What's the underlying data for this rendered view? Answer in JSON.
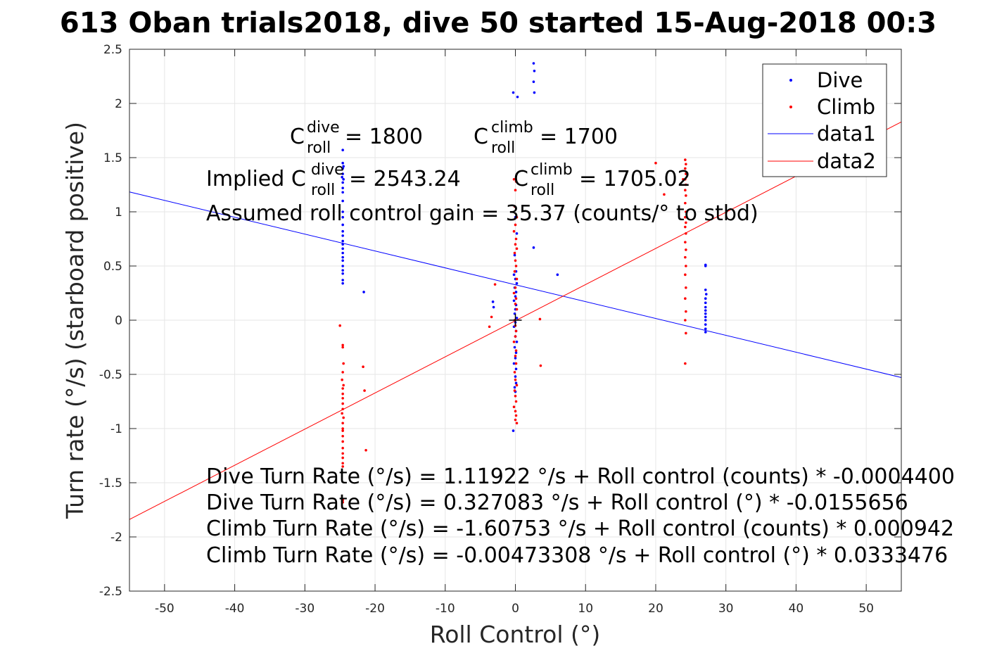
{
  "chart_data": {
    "type": "scatter",
    "title": "613 Oban trials2018, dive 50 started 15-Aug-2018 00:3",
    "xlabel": "Roll Control (°)",
    "ylabel": "Turn rate (°/s) (starboard positive)",
    "xlim": [
      -55,
      55
    ],
    "ylim": [
      -2.5,
      2.5
    ],
    "xticks": [
      -50,
      -40,
      -30,
      -20,
      -10,
      0,
      10,
      20,
      30,
      40,
      50
    ],
    "yticks": [
      -2.5,
      -2,
      -1.5,
      -1,
      -0.5,
      0,
      0.5,
      1,
      1.5,
      2,
      2.5
    ],
    "grid": true,
    "legend_position": "top-right",
    "legend": [
      "Dive",
      "Climb",
      "data1",
      "data2"
    ],
    "colors": {
      "dive": "#0000ff",
      "climb": "#ff0000",
      "axes": "#262626",
      "grid": "#e6e6e6"
    },
    "series": [
      {
        "name": "Dive",
        "kind": "points",
        "color": "#0000ff",
        "points": [
          [
            -24.6,
            1.57
          ],
          [
            -24.6,
            1.45
          ],
          [
            -24.5,
            1.42
          ],
          [
            -24.6,
            1.4
          ],
          [
            -24.6,
            1.35
          ],
          [
            -24.7,
            1.32
          ],
          [
            -24.5,
            1.3
          ],
          [
            -24.6,
            1.27
          ],
          [
            -24.6,
            1.22
          ],
          [
            -24.6,
            1.18
          ],
          [
            -24.6,
            1.1
          ],
          [
            -24.6,
            1.0
          ],
          [
            -24.6,
            0.95
          ],
          [
            -24.6,
            0.88
          ],
          [
            -24.6,
            0.82
          ],
          [
            -24.6,
            0.78
          ],
          [
            -24.6,
            0.73
          ],
          [
            -24.6,
            0.7
          ],
          [
            -24.6,
            0.66
          ],
          [
            -24.6,
            0.62
          ],
          [
            -24.6,
            0.58
          ],
          [
            -24.6,
            0.55
          ],
          [
            -24.6,
            0.5
          ],
          [
            -24.6,
            0.46
          ],
          [
            -24.6,
            0.43
          ],
          [
            -24.6,
            0.37
          ],
          [
            -24.6,
            0.34
          ],
          [
            -21.6,
            0.26
          ],
          [
            -3.2,
            0.17
          ],
          [
            -3.1,
            0.12
          ],
          [
            -0.3,
            2.1
          ],
          [
            0.3,
            2.06
          ],
          [
            0,
            0.95
          ],
          [
            0.2,
            0.8
          ],
          [
            -0.1,
            0.6
          ],
          [
            0.1,
            0.45
          ],
          [
            -0.2,
            0.42
          ],
          [
            0.0,
            0.38
          ],
          [
            0.2,
            0.34
          ],
          [
            -0.1,
            0.3
          ],
          [
            0.1,
            0.26
          ],
          [
            0.0,
            0.22
          ],
          [
            -0.2,
            0.18
          ],
          [
            0.1,
            0.14
          ],
          [
            0.0,
            0.1
          ],
          [
            -0.1,
            0.06
          ],
          [
            0.2,
            0.02
          ],
          [
            0.0,
            -0.02
          ],
          [
            -0.2,
            -0.06
          ],
          [
            0.1,
            -0.1
          ],
          [
            0.0,
            -0.15
          ],
          [
            0.2,
            -0.2
          ],
          [
            -0.1,
            -0.25
          ],
          [
            0.1,
            -0.3
          ],
          [
            0.0,
            -0.35
          ],
          [
            -0.2,
            -0.4
          ],
          [
            0.1,
            -0.45
          ],
          [
            0.0,
            -0.52
          ],
          [
            0.1,
            -0.58
          ],
          [
            -0.1,
            -0.62
          ],
          [
            0.0,
            -0.66
          ],
          [
            -0.3,
            -1.02
          ],
          [
            2.6,
            2.37
          ],
          [
            2.7,
            2.3
          ],
          [
            2.6,
            2.2
          ],
          [
            2.7,
            2.1
          ],
          [
            2.6,
            0.67
          ],
          [
            6.0,
            0.42
          ],
          [
            27.1,
            0.51
          ],
          [
            27.1,
            0.5
          ],
          [
            27.1,
            0.28
          ],
          [
            27.2,
            0.24
          ],
          [
            27.1,
            0.2
          ],
          [
            27.1,
            0.16
          ],
          [
            27.1,
            0.12
          ],
          [
            27.1,
            0.09
          ],
          [
            27.1,
            0.06
          ],
          [
            27.1,
            0.03
          ],
          [
            27.1,
            0.0
          ],
          [
            27.1,
            -0.04
          ],
          [
            27.1,
            -0.08
          ],
          [
            27.1,
            -0.11
          ]
        ]
      },
      {
        "name": "Climb",
        "kind": "points",
        "color": "#ff0000",
        "points": [
          [
            -25.0,
            -0.05
          ],
          [
            -24.6,
            -0.23
          ],
          [
            -24.6,
            -0.25
          ],
          [
            -24.5,
            -0.4
          ],
          [
            -24.6,
            -0.48
          ],
          [
            -24.7,
            -0.55
          ],
          [
            -24.5,
            -0.6
          ],
          [
            -24.6,
            -0.63
          ],
          [
            -24.6,
            -0.68
          ],
          [
            -24.6,
            -0.72
          ],
          [
            -24.6,
            -0.77
          ],
          [
            -24.6,
            -0.82
          ],
          [
            -24.7,
            -0.86
          ],
          [
            -24.5,
            -0.9
          ],
          [
            -24.6,
            -0.95
          ],
          [
            -24.6,
            -1.0
          ],
          [
            -24.6,
            -1.02
          ],
          [
            -24.6,
            -1.07
          ],
          [
            -24.6,
            -1.12
          ],
          [
            -24.6,
            -1.18
          ],
          [
            -24.6,
            -1.23
          ],
          [
            -24.6,
            -1.27
          ],
          [
            -24.6,
            -1.32
          ],
          [
            -24.6,
            -1.35
          ],
          [
            -24.6,
            -1.66
          ],
          [
            -24.6,
            -1.68
          ],
          [
            -21.7,
            -0.43
          ],
          [
            -21.5,
            -0.65
          ],
          [
            -21.3,
            -1.2
          ],
          [
            -3.7,
            -0.06
          ],
          [
            -3.4,
            0.03
          ],
          [
            -2.9,
            0.33
          ],
          [
            -0.2,
            1.3
          ],
          [
            0.1,
            1.28
          ],
          [
            0.0,
            1.2
          ],
          [
            -0.1,
            1.05
          ],
          [
            0.2,
            0.95
          ],
          [
            0.0,
            0.88
          ],
          [
            -0.2,
            0.82
          ],
          [
            0.1,
            0.75
          ],
          [
            0.0,
            0.7
          ],
          [
            0.2,
            0.66
          ],
          [
            -0.1,
            0.62
          ],
          [
            0.0,
            0.55
          ],
          [
            0.1,
            0.5
          ],
          [
            -0.1,
            0.45
          ],
          [
            0.2,
            0.38
          ],
          [
            0.0,
            0.3
          ],
          [
            -0.2,
            0.25
          ],
          [
            0.1,
            0.2
          ],
          [
            0.0,
            0.15
          ],
          [
            0.2,
            0.1
          ],
          [
            -0.1,
            0.0
          ],
          [
            0.0,
            -0.05
          ],
          [
            0.1,
            -0.1
          ],
          [
            0.0,
            -0.15
          ],
          [
            -0.2,
            -0.2
          ],
          [
            0.1,
            -0.28
          ],
          [
            0.0,
            -0.33
          ],
          [
            0.1,
            -0.4
          ],
          [
            -0.1,
            -0.48
          ],
          [
            0.0,
            -0.55
          ],
          [
            0.2,
            -0.6
          ],
          [
            -0.1,
            -0.65
          ],
          [
            0.0,
            -0.7
          ],
          [
            0.1,
            -0.75
          ],
          [
            -0.2,
            -0.8
          ],
          [
            0.0,
            -0.84
          ],
          [
            0.1,
            -0.88
          ],
          [
            0.0,
            -0.92
          ],
          [
            0.2,
            -0.95
          ],
          [
            3.5,
            0.01
          ],
          [
            3.6,
            -0.42
          ],
          [
            20.0,
            1.45
          ],
          [
            21.2,
            1.16
          ],
          [
            23.9,
            1.3
          ],
          [
            24.2,
            1.48
          ],
          [
            24.3,
            1.44
          ],
          [
            24.2,
            1.4
          ],
          [
            24.3,
            1.35
          ],
          [
            24.2,
            1.3
          ],
          [
            24.3,
            1.25
          ],
          [
            24.2,
            1.2
          ],
          [
            24.3,
            1.15
          ],
          [
            24.2,
            1.08
          ],
          [
            24.3,
            1.0
          ],
          [
            24.2,
            0.95
          ],
          [
            24.3,
            0.9
          ],
          [
            24.2,
            0.86
          ],
          [
            24.3,
            0.8
          ],
          [
            24.2,
            0.72
          ],
          [
            24.3,
            0.65
          ],
          [
            24.2,
            0.58
          ],
          [
            24.3,
            0.5
          ],
          [
            24.2,
            0.42
          ],
          [
            24.3,
            0.3
          ],
          [
            24.2,
            0.2
          ],
          [
            24.3,
            0.08
          ],
          [
            24.2,
            0.0
          ],
          [
            24.3,
            -0.12
          ],
          [
            24.2,
            -0.4
          ]
        ]
      },
      {
        "name": "data1",
        "kind": "line",
        "color": "#0000ff",
        "intercept": 0.327083,
        "slope": -0.0155656
      },
      {
        "name": "data2",
        "kind": "line",
        "color": "#ff0000",
        "intercept": -0.00473308,
        "slope": 0.0333476
      }
    ],
    "marker": {
      "x": 0,
      "y": 0,
      "symbol": "+"
    },
    "annotations": {
      "c_dive": {
        "base": "C",
        "sup": "dive",
        "sub": "roll",
        "rest": " = 1800"
      },
      "c_climb": {
        "base": "C",
        "sup": "climb",
        "sub": "roll",
        "rest": " = 1700"
      },
      "implied_dive": {
        "prefix": "Implied C",
        "sup": "dive",
        "sub": "roll",
        "rest": " = 2543.24"
      },
      "implied_climb": {
        "base": "C",
        "sup": "climb",
        "sub": "roll",
        "rest": " = 1705.02"
      },
      "gain": "Assumed roll control gain = 35.37 (counts/° to stbd)",
      "fit_lines": [
        "Dive Turn Rate (°/s) = 1.11922 °/s + Roll control (counts) * -0.0004400",
        "Dive Turn Rate (°/s) = 0.327083 °/s + Roll control (°) * -0.0155656",
        "Climb Turn Rate (°/s) = -1.60753 °/s + Roll control (counts) * 0.000942",
        "Climb Turn Rate (°/s) = -0.00473308 °/s + Roll control (°) * 0.0333476"
      ]
    }
  }
}
